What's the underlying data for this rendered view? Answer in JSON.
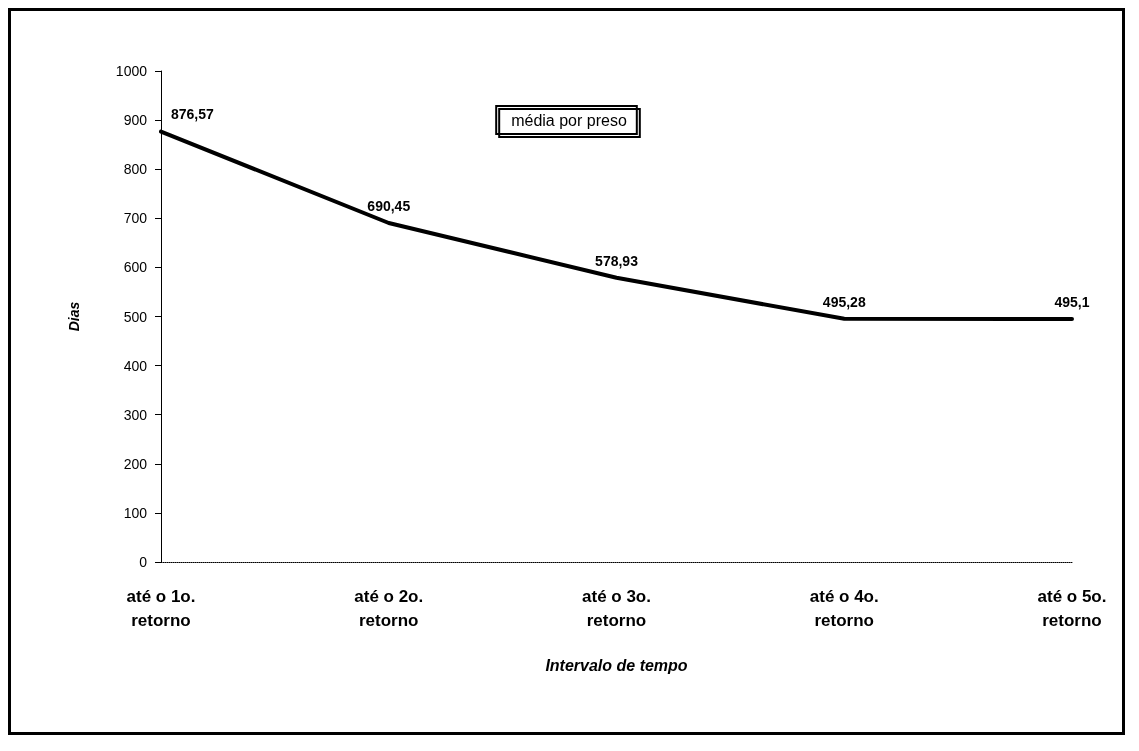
{
  "chart_data": {
    "type": "line",
    "xlabel": "Intervalo de tempo",
    "ylabel": "Dias",
    "categories": [
      "até o 1o. retorno",
      "até o 2o. retorno",
      "até o 3o. retorno",
      "até o 4o. retorno",
      "até o 5o. retorno"
    ],
    "series": [
      {
        "name": "média por preso",
        "color": "#000000",
        "values": [
          876.57,
          690.45,
          578.93,
          495.28,
          495.1
        ],
        "value_labels": [
          "876,57",
          "690,45",
          "578,93",
          "495,28",
          "495,1"
        ]
      }
    ],
    "ylim": [
      0,
      1000
    ],
    "yticks": [
      0,
      100,
      200,
      300,
      400,
      500,
      600,
      700,
      800,
      900,
      1000
    ],
    "grid": false,
    "legend": "top",
    "marker": "none",
    "line_style": "solid"
  }
}
